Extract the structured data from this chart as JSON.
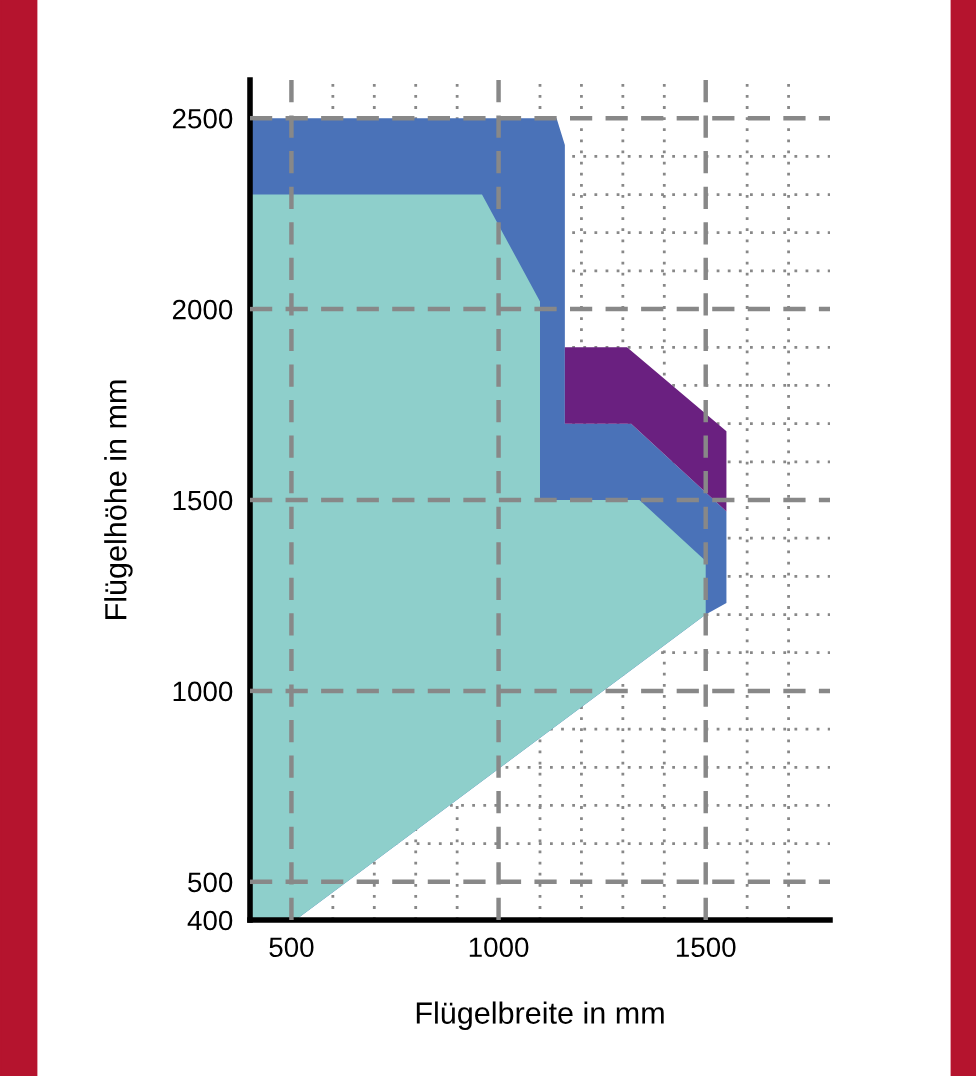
{
  "chart_data": {
    "type": "area",
    "xlabel": "Flügelbreite in mm",
    "ylabel": "Flügelhöhe in mm",
    "xlim": [
      400,
      1800
    ],
    "ylim": [
      400,
      2600
    ],
    "xticks": [
      500,
      1000,
      1500
    ],
    "yticks": [
      400,
      500,
      1000,
      1500,
      2000,
      2500
    ],
    "grid": true,
    "series": [
      {
        "color": "#4a72b8",
        "x": [
          400,
          1140,
          1160,
          1160,
          1320,
          1550,
          1550,
          1500,
          510,
          400
        ],
        "values": [
          2500,
          2500,
          2430,
          1700,
          1700,
          1470,
          1230,
          1200,
          400,
          400
        ]
      },
      {
        "color": "#8ecfcb",
        "x": [
          400,
          510,
          1500,
          1500,
          1340,
          1100,
          1100,
          960,
          400
        ],
        "values": [
          400,
          400,
          1200,
          1340,
          1500,
          1500,
          2020,
          2300,
          2300
        ]
      },
      {
        "color": "#6a2080",
        "x": [
          1160,
          1310,
          1550,
          1550,
          1320,
          1160
        ],
        "values": [
          1900,
          1900,
          1680,
          1470,
          1700,
          1700
        ]
      }
    ]
  }
}
